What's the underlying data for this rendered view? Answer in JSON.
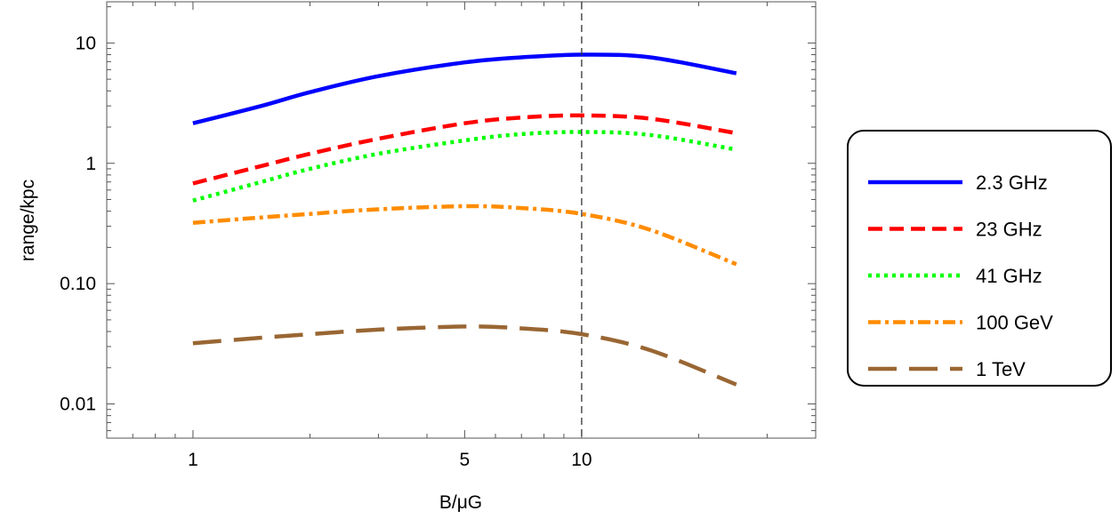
{
  "chart_data": {
    "type": "line",
    "title": "",
    "xlabel": "B/μG",
    "ylabel": "range/kpc",
    "x_scale": "log",
    "y_scale": "log",
    "xlim": [
      0.6,
      40
    ],
    "ylim": [
      0.0052,
      22
    ],
    "x_ticks": [
      {
        "value": 1,
        "label": "1"
      },
      {
        "value": 5,
        "label": "5"
      },
      {
        "value": 10,
        "label": "10"
      }
    ],
    "y_ticks": [
      {
        "value": 0.01,
        "label": "0.01"
      },
      {
        "value": 0.1,
        "label": "0.10"
      },
      {
        "value": 1,
        "label": "1"
      },
      {
        "value": 10,
        "label": "10"
      }
    ],
    "vertical_reference_line": {
      "x": 10,
      "style": "dashed",
      "color": "#333333"
    },
    "grid": false,
    "legend_position": "right",
    "x": [
      1,
      1.5,
      2,
      3,
      5,
      7,
      10,
      15,
      25
    ],
    "series": [
      {
        "name": "2.3 GHz",
        "color": "#0000ff",
        "style": "solid",
        "values": [
          2.15,
          3.0,
          3.9,
          5.3,
          6.9,
          7.6,
          8.0,
          7.6,
          5.6
        ]
      },
      {
        "name": "23 GHz",
        "color": "#ff0000",
        "style": "dashed",
        "values": [
          0.68,
          0.95,
          1.2,
          1.6,
          2.15,
          2.4,
          2.5,
          2.35,
          1.78
        ]
      },
      {
        "name": "41 GHz",
        "color": "#00ff00",
        "style": "dotted",
        "values": [
          0.49,
          0.7,
          0.9,
          1.2,
          1.55,
          1.75,
          1.82,
          1.72,
          1.3
        ]
      },
      {
        "name": "100 GeV",
        "color": "#ff8c00",
        "style": "dash-dot",
        "values": [
          0.32,
          0.355,
          0.38,
          0.415,
          0.44,
          0.425,
          0.38,
          0.28,
          0.145
        ]
      },
      {
        "name": "1 TeV",
        "color": "#996633",
        "style": "long-dashed",
        "values": [
          0.032,
          0.0355,
          0.038,
          0.0415,
          0.044,
          0.0425,
          0.038,
          0.028,
          0.0145
        ]
      }
    ]
  }
}
